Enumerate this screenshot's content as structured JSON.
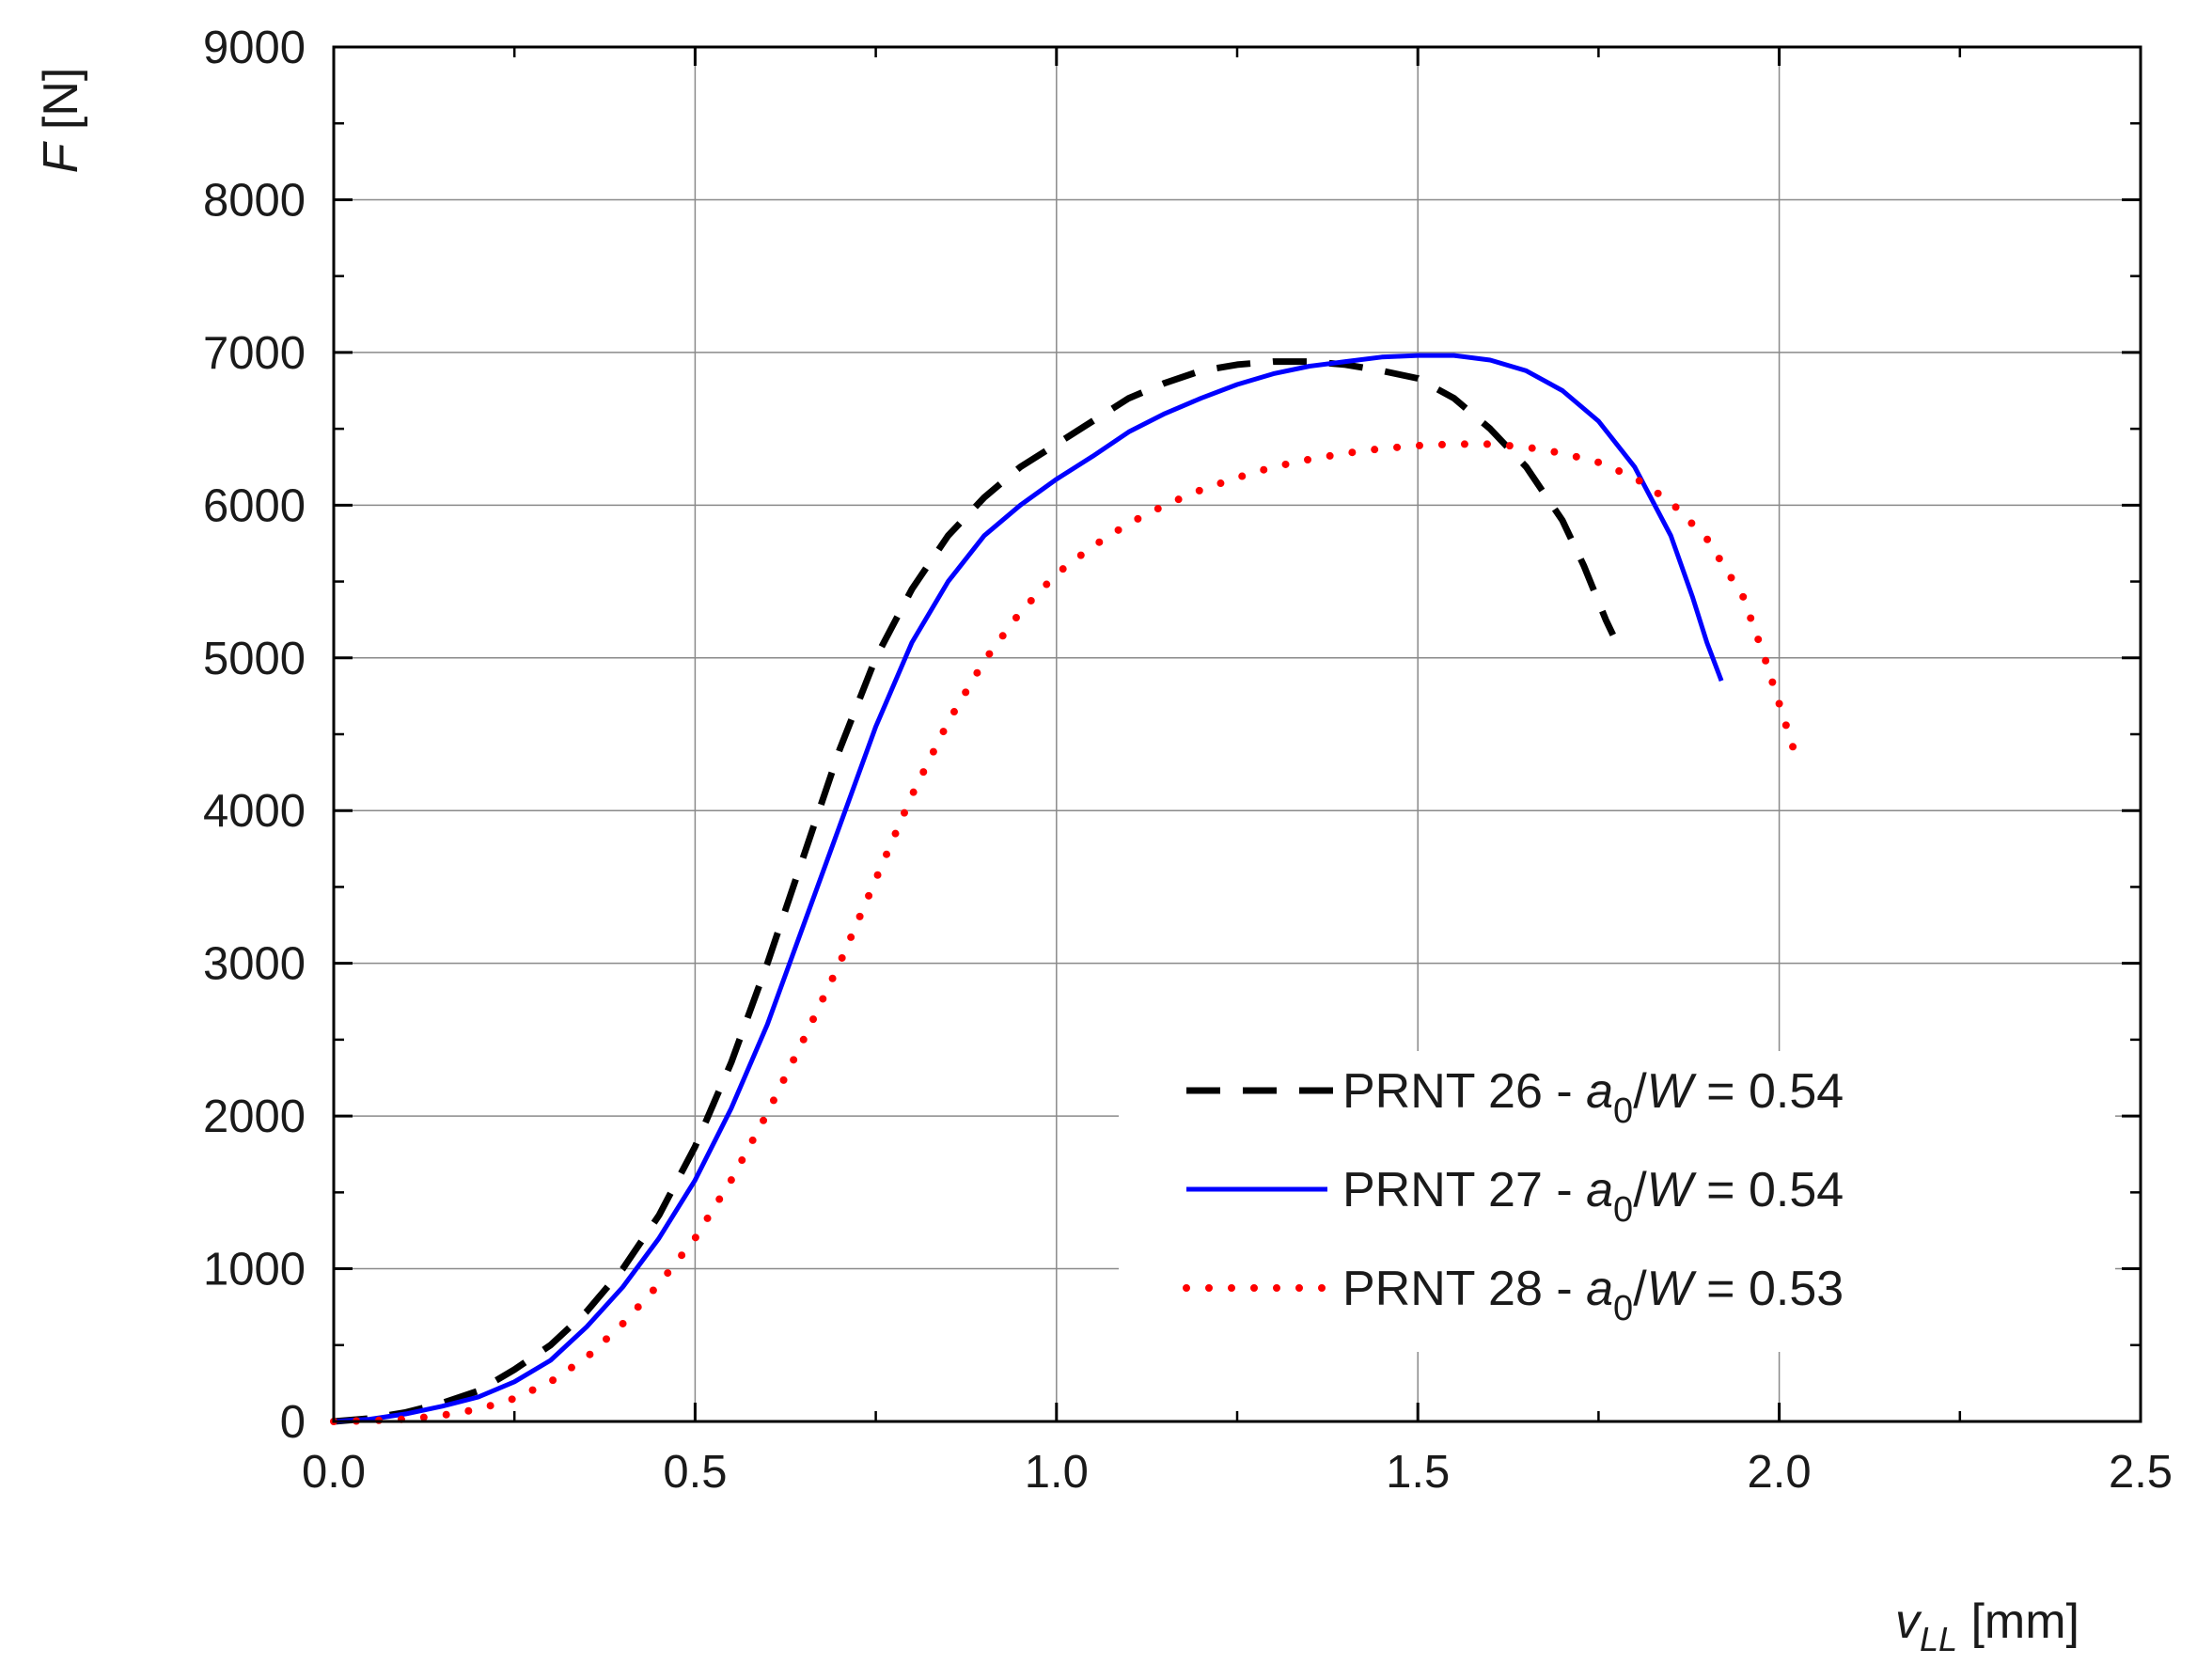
{
  "chart_data": {
    "type": "line",
    "title": "",
    "xlabel": {
      "var": "v",
      "sub": "LL",
      "unit": " [mm]"
    },
    "ylabel": {
      "var": "F",
      "unit": " [N]"
    },
    "xlim": [
      0,
      2.5
    ],
    "ylim": [
      0,
      9000
    ],
    "x_ticks": [
      0.0,
      0.5,
      1.0,
      1.5,
      2.0,
      2.5
    ],
    "x_tick_labels": [
      "0.0",
      "0.5",
      "1.0",
      "1.5",
      "2.0",
      "2.5"
    ],
    "y_ticks": [
      0,
      1000,
      2000,
      3000,
      4000,
      5000,
      6000,
      7000,
      8000,
      9000
    ],
    "y_tick_labels": [
      "0",
      "1000",
      "2000",
      "3000",
      "4000",
      "5000",
      "6000",
      "7000",
      "8000",
      "9000"
    ],
    "grid": true,
    "legend_position": "bottom-right",
    "series": [
      {
        "name": "PRNT 26 - a0/W = 0.54",
        "legend": {
          "pre": "PRNT 26 - ",
          "var": "a",
          "sub": "0",
          "post": "/W = 0.54"
        },
        "color": "#000000",
        "style": "dashed",
        "x": [
          0.0,
          0.05,
          0.1,
          0.15,
          0.2,
          0.25,
          0.3,
          0.35,
          0.4,
          0.45,
          0.5,
          0.55,
          0.6,
          0.65,
          0.7,
          0.75,
          0.8,
          0.85,
          0.9,
          0.95,
          1.0,
          1.05,
          1.1,
          1.15,
          1.2,
          1.25,
          1.3,
          1.35,
          1.4,
          1.45,
          1.5,
          1.55,
          1.6,
          1.65,
          1.7,
          1.73,
          1.76,
          1.77
        ],
        "y": [
          0,
          20,
          60,
          120,
          200,
          340,
          500,
          720,
          1000,
          1350,
          1800,
          2350,
          3000,
          3700,
          4400,
          5000,
          5450,
          5800,
          6050,
          6250,
          6400,
          6550,
          6700,
          6800,
          6880,
          6920,
          6940,
          6940,
          6920,
          6880,
          6830,
          6700,
          6500,
          6250,
          5900,
          5600,
          5250,
          5150
        ]
      },
      {
        "name": "PRNT 27 - a0/W = 0.54",
        "legend": {
          "pre": "PRNT 27 - ",
          "var": "a",
          "sub": "0",
          "post": "/W = 0.54"
        },
        "color": "#0000ff",
        "style": "solid",
        "x": [
          0.0,
          0.05,
          0.1,
          0.15,
          0.2,
          0.25,
          0.3,
          0.35,
          0.4,
          0.45,
          0.5,
          0.55,
          0.6,
          0.65,
          0.7,
          0.75,
          0.8,
          0.85,
          0.9,
          0.95,
          1.0,
          1.05,
          1.1,
          1.15,
          1.2,
          1.25,
          1.3,
          1.35,
          1.4,
          1.45,
          1.5,
          1.55,
          1.6,
          1.65,
          1.7,
          1.75,
          1.8,
          1.85,
          1.88,
          1.9,
          1.92
        ],
        "y": [
          0,
          15,
          50,
          100,
          160,
          260,
          400,
          620,
          880,
          1200,
          1580,
          2050,
          2600,
          3250,
          3900,
          4550,
          5100,
          5500,
          5800,
          6000,
          6170,
          6320,
          6480,
          6600,
          6700,
          6790,
          6860,
          6910,
          6940,
          6970,
          6980,
          6980,
          6950,
          6880,
          6750,
          6550,
          6250,
          5800,
          5400,
          5100,
          4850
        ]
      },
      {
        "name": "PRNT 28 - a0/W = 0.53",
        "legend": {
          "pre": "PRNT 28 - ",
          "var": "a",
          "sub": "0",
          "post": "/W = 0.53"
        },
        "color": "#ff0000",
        "style": "dotted",
        "x": [
          0.0,
          0.05,
          0.1,
          0.15,
          0.2,
          0.25,
          0.3,
          0.35,
          0.4,
          0.45,
          0.5,
          0.55,
          0.6,
          0.65,
          0.7,
          0.75,
          0.8,
          0.85,
          0.9,
          0.95,
          1.0,
          1.05,
          1.1,
          1.15,
          1.2,
          1.25,
          1.3,
          1.35,
          1.4,
          1.45,
          1.5,
          1.55,
          1.6,
          1.65,
          1.7,
          1.75,
          1.8,
          1.85,
          1.9,
          1.95,
          1.98,
          2.0,
          2.02
        ],
        "y": [
          0,
          5,
          15,
          40,
          80,
          150,
          260,
          420,
          640,
          900,
          1200,
          1580,
          2020,
          2500,
          3000,
          3550,
          4100,
          4580,
          4980,
          5300,
          5550,
          5730,
          5880,
          6000,
          6100,
          6180,
          6250,
          6300,
          6340,
          6370,
          6390,
          6400,
          6400,
          6380,
          6340,
          6280,
          6180,
          6020,
          5780,
          5400,
          5000,
          4700,
          4400
        ]
      }
    ]
  }
}
